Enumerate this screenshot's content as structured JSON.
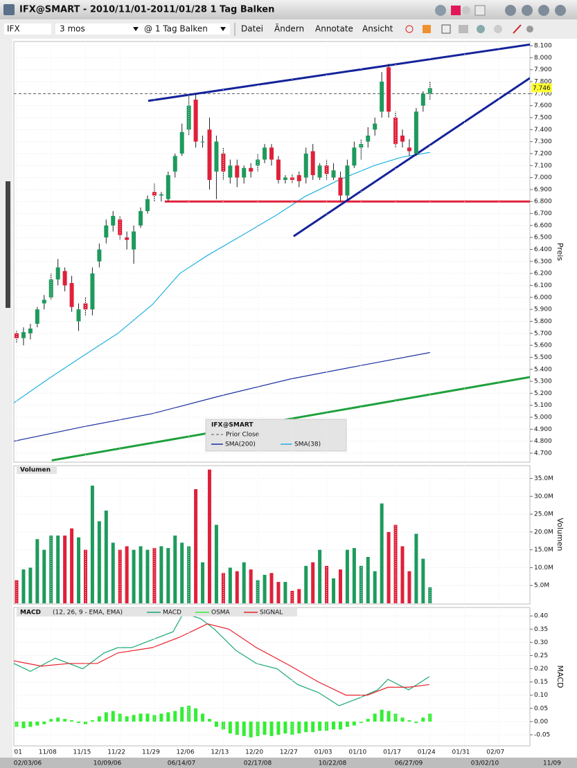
{
  "window_title": "IFX@SMART - 2010/11/01-2011/01/28 1 Tag Balken",
  "toolbar": {
    "symbol": "IFX",
    "period": "3 mos",
    "bar_size": "@ 1 Tag Balken",
    "menus": [
      "Datei",
      "Ändern",
      "Annotate",
      "Ansicht"
    ]
  },
  "navigator_labels": [
    "02/03/06",
    "10/09/06",
    "06/14/07",
    "02/17/08",
    "10/22/08",
    "06/27/09",
    "03/02/10",
    "11/09"
  ],
  "chart_data": [
    {
      "type": "candlestick",
      "y_label": "Preis",
      "legend_title": "IFX@SMART",
      "up_color": "#1e9a5c",
      "down_color": "#e0203a",
      "grid": true,
      "xlim": [
        -0.4,
        74.5
      ],
      "ylim": [
        4.625,
        8.135
      ],
      "yticks": [
        {
          "value": 4.7,
          "label": "4.700"
        },
        {
          "value": 4.8,
          "label": "4.800"
        },
        {
          "value": 4.9,
          "label": "4.900"
        },
        {
          "value": 5.0,
          "label": "5.000"
        },
        {
          "value": 5.1,
          "label": "5.100"
        },
        {
          "value": 5.2,
          "label": "5.200"
        },
        {
          "value": 5.3,
          "label": "5.300"
        },
        {
          "value": 5.4,
          "label": "5.400"
        },
        {
          "value": 5.5,
          "label": "5.500"
        },
        {
          "value": 5.6,
          "label": "5.600"
        },
        {
          "value": 5.7,
          "label": "5.700"
        },
        {
          "value": 5.8,
          "label": "5.800"
        },
        {
          "value": 5.9,
          "label": "5.900"
        },
        {
          "value": 6.0,
          "label": "6.000"
        },
        {
          "value": 6.1,
          "label": "6.100"
        },
        {
          "value": 6.2,
          "label": "6.200"
        },
        {
          "value": 6.3,
          "label": "6.300"
        },
        {
          "value": 6.4,
          "label": "6.400"
        },
        {
          "value": 6.5,
          "label": "6.500"
        },
        {
          "value": 6.6,
          "label": "6.600"
        },
        {
          "value": 6.7,
          "label": "6.700"
        },
        {
          "value": 6.8,
          "label": "6.800"
        },
        {
          "value": 6.9,
          "label": "6.900"
        },
        {
          "value": 7.0,
          "label": "7.000"
        },
        {
          "value": 7.1,
          "label": "7.100"
        },
        {
          "value": 7.2,
          "label": "7.200"
        },
        {
          "value": 7.3,
          "label": "7.300"
        },
        {
          "value": 7.4,
          "label": "7.400"
        },
        {
          "value": 7.5,
          "label": "7.500"
        },
        {
          "value": 7.6,
          "label": "7.600"
        },
        {
          "value": 7.7,
          "label": "7.700"
        },
        {
          "value": 7.8,
          "label": "7.800"
        },
        {
          "value": 7.9,
          "label": "7.900"
        },
        {
          "value": 8.0,
          "label": "8.000"
        },
        {
          "value": 8.1,
          "label": "8.100"
        }
      ],
      "open": [
        5.7,
        5.66,
        5.7,
        5.78,
        5.95,
        6.0,
        6.15,
        6.22,
        6.12,
        5.8,
        5.95,
        5.9,
        6.3,
        6.5,
        6.6,
        6.65,
        6.5,
        6.4,
        6.6,
        6.72,
        6.88,
        6.85,
        6.82,
        7.05,
        7.2,
        7.4,
        7.65,
        7.3,
        7.4,
        7.05,
        7.2,
        7.0,
        7.1,
        7.0,
        7.08,
        7.1,
        7.15,
        7.25,
        7.15,
        6.98,
        7.0,
        7.02,
        7.0,
        7.22,
        7.0,
        7.1,
        7.0,
        7.0,
        6.85,
        7.1,
        7.25,
        7.3,
        7.4,
        7.55,
        7.92,
        7.5,
        7.35,
        7.25,
        7.2,
        7.6,
        7.7
      ],
      "high": [
        5.72,
        5.75,
        5.78,
        5.92,
        6.02,
        6.2,
        6.32,
        6.25,
        6.18,
        5.95,
        6.0,
        6.25,
        6.45,
        6.65,
        6.72,
        6.68,
        6.55,
        6.6,
        6.75,
        6.85,
        6.95,
        6.88,
        7.05,
        7.2,
        7.45,
        7.7,
        7.7,
        7.35,
        7.5,
        7.35,
        7.25,
        7.15,
        7.15,
        7.1,
        7.12,
        7.2,
        7.28,
        7.28,
        7.18,
        7.02,
        7.03,
        7.05,
        7.25,
        7.28,
        7.12,
        7.15,
        7.12,
        7.05,
        7.15,
        7.3,
        7.32,
        7.42,
        7.5,
        7.88,
        7.95,
        7.55,
        7.4,
        7.32,
        7.58,
        7.72,
        7.8
      ],
      "low": [
        5.62,
        5.6,
        5.65,
        5.75,
        5.9,
        5.98,
        6.1,
        6.05,
        5.88,
        5.72,
        5.85,
        5.85,
        6.25,
        6.45,
        6.55,
        6.48,
        6.4,
        6.28,
        6.58,
        6.7,
        6.8,
        6.8,
        6.8,
        7.0,
        7.18,
        7.35,
        7.25,
        7.25,
        6.9,
        6.82,
        6.98,
        6.95,
        6.92,
        6.95,
        7.0,
        7.05,
        7.12,
        7.1,
        6.95,
        6.95,
        6.95,
        6.92,
        6.95,
        6.98,
        6.98,
        6.98,
        6.98,
        6.8,
        6.82,
        7.08,
        7.15,
        7.25,
        7.35,
        7.5,
        7.5,
        7.25,
        7.25,
        7.18,
        7.18,
        7.55,
        7.65
      ],
      "close": [
        5.66,
        5.71,
        5.74,
        5.9,
        5.98,
        6.15,
        6.25,
        6.1,
        5.92,
        5.9,
        5.9,
        6.2,
        6.4,
        6.6,
        6.68,
        6.52,
        6.48,
        6.55,
        6.72,
        6.82,
        6.85,
        6.86,
        7.02,
        7.18,
        7.38,
        7.6,
        7.3,
        7.3,
        6.98,
        7.3,
        7.05,
        7.1,
        7.0,
        7.08,
        7.05,
        7.15,
        7.25,
        7.15,
        6.98,
        7.0,
        6.98,
        6.97,
        7.2,
        7.02,
        7.1,
        7.03,
        7.06,
        6.85,
        7.1,
        7.25,
        7.28,
        7.35,
        7.45,
        7.8,
        7.55,
        7.28,
        7.3,
        7.22,
        7.55,
        7.7,
        7.746
      ],
      "prior_close": {
        "name": "Prior Close",
        "value": 7.7,
        "color": "#555555"
      },
      "series": [
        {
          "name": "SMA(200)",
          "color": "#1a2f9e",
          "x": [
            -0.4,
            9.6,
            19.7,
            29.7,
            39.8,
            49.8,
            60
          ],
          "values": [
            4.8,
            4.92,
            5.03,
            5.18,
            5.32,
            5.43,
            5.54
          ]
        },
        {
          "name": "SMA(38)",
          "color": "#1fb0e0",
          "x": [
            -0.4,
            4.6,
            9.6,
            14.7,
            19.7,
            23.7,
            27.7,
            32.8,
            37.8,
            41.8,
            46.8,
            51.9,
            55.9,
            60
          ],
          "values": [
            5.12,
            5.32,
            5.51,
            5.7,
            5.94,
            6.2,
            6.35,
            6.52,
            6.69,
            6.84,
            6.98,
            7.1,
            7.17,
            7.21
          ]
        }
      ],
      "trendlines": [
        {
          "color": "#e0203a",
          "x": [
            21.5,
            74.5
          ],
          "values": [
            6.8,
            6.8
          ]
        },
        {
          "color": "#14239a",
          "x": [
            19.1,
            74.5
          ],
          "values": [
            7.64,
            8.11
          ]
        },
        {
          "color": "#14239a",
          "x": [
            40.2,
            74.5
          ],
          "values": [
            6.51,
            7.83
          ]
        },
        {
          "color": "#1ea03c",
          "x": [
            5.1,
            74.5
          ],
          "values": [
            4.64,
            5.335
          ]
        }
      ]
    },
    {
      "type": "bar",
      "title": "Volumen",
      "y_label": "Volumen",
      "grid": true,
      "xlim": [
        -0.4,
        74.5
      ],
      "ylim": [
        0,
        38.6
      ],
      "yticks": [
        {
          "value": 5,
          "label": "5.0M"
        },
        {
          "value": 10,
          "label": "10.0M"
        },
        {
          "value": 15,
          "label": "15.0M"
        },
        {
          "value": 20,
          "label": "20.0M"
        },
        {
          "value": 25,
          "label": "25.0M"
        },
        {
          "value": 30,
          "label": "30.0M"
        },
        {
          "value": 35,
          "label": "35.0M"
        }
      ],
      "values": [
        6.5,
        9.5,
        10,
        18,
        15,
        19,
        19,
        19,
        21,
        18.5,
        15,
        33,
        23,
        26,
        17,
        15,
        16,
        15,
        16,
        15,
        15.5,
        16,
        15.5,
        19,
        17,
        16,
        32,
        11.5,
        37.5,
        22,
        8.5,
        10,
        9,
        11.5,
        9.5,
        6.5,
        8,
        8.5,
        6,
        6,
        3.5,
        4,
        10.5,
        11.5,
        15,
        10.5,
        7,
        9.5,
        15,
        15.5,
        10.5,
        13,
        9,
        28,
        20,
        22,
        16,
        9,
        19.5,
        12.5,
        4.5
      ]
    },
    {
      "type": "line",
      "title": "MACD",
      "subtitle": "(12, 26, 9 - EMA, EMA)",
      "y_label": "MACD",
      "grid": true,
      "xlim": [
        -0.4,
        74.5
      ],
      "ylim": [
        -0.092,
        0.432
      ],
      "xticks": [
        {
          "value": 0,
          "label": "11/01"
        },
        {
          "value": 5,
          "label": "11/08"
        },
        {
          "value": 10,
          "label": "11/15"
        },
        {
          "value": 15,
          "label": "11/22"
        },
        {
          "value": 20,
          "label": "11/29"
        },
        {
          "value": 25,
          "label": "12/06"
        },
        {
          "value": 30,
          "label": "12/13"
        },
        {
          "value": 35,
          "label": "12/20"
        },
        {
          "value": 40,
          "label": "12/27"
        },
        {
          "value": 45,
          "label": "01/03"
        },
        {
          "value": 50,
          "label": "01/10"
        },
        {
          "value": 55,
          "label": "01/17"
        },
        {
          "value": 60,
          "label": "01/24"
        },
        {
          "value": 65,
          "label": "01/31"
        },
        {
          "value": 70,
          "label": "02/07"
        }
      ],
      "yticks": [
        {
          "value": -0.05,
          "label": "-0.05"
        },
        {
          "value": 0,
          "label": "0.00"
        },
        {
          "value": 0.05,
          "label": "0.05"
        },
        {
          "value": 0.1,
          "label": "0.10"
        },
        {
          "value": 0.15,
          "label": "0.15"
        },
        {
          "value": 0.2,
          "label": "0.20"
        },
        {
          "value": 0.25,
          "label": "0.25"
        },
        {
          "value": 0.3,
          "label": "0.30"
        },
        {
          "value": 0.35,
          "label": "0.35"
        },
        {
          "value": 0.4,
          "label": "0.40"
        }
      ],
      "series": [
        {
          "name": "MACD",
          "color": "#17a872",
          "x": [
            -0.4,
            2,
            5.6,
            9.6,
            12.7,
            14.7,
            16.7,
            19.7,
            22.7,
            24.2,
            26.7,
            28.7,
            31.8,
            34.8,
            37.8,
            40.8,
            43.8,
            46.8,
            49.8,
            52.4,
            53.9,
            56.9,
            59.9
          ],
          "values": [
            0.22,
            0.19,
            0.24,
            0.2,
            0.26,
            0.28,
            0.28,
            0.31,
            0.34,
            0.41,
            0.39,
            0.35,
            0.27,
            0.22,
            0.2,
            0.14,
            0.11,
            0.06,
            0.09,
            0.12,
            0.16,
            0.12,
            0.17
          ]
        },
        {
          "name": "OSMA",
          "color": "#33ee33",
          "kind": "bar",
          "values": [
            -0.02,
            -0.025,
            -0.02,
            -0.015,
            -0.01,
            0.01,
            0.015,
            0.01,
            0.005,
            -0.005,
            -0.01,
            0.005,
            0.02,
            0.035,
            0.04,
            0.03,
            0.02,
            0.025,
            0.03,
            0.03,
            0.025,
            0.03,
            0.035,
            0.04,
            0.055,
            0.06,
            0.05,
            0.03,
            0.01,
            -0.02,
            -0.03,
            -0.045,
            -0.05,
            -0.055,
            -0.06,
            -0.055,
            -0.05,
            -0.055,
            -0.05,
            -0.045,
            -0.05,
            -0.045,
            -0.04,
            -0.04,
            -0.035,
            -0.035,
            -0.03,
            -0.03,
            -0.02,
            -0.015,
            -0.005,
            0.01,
            0.03,
            0.045,
            0.04,
            0.03,
            0.015,
            0.005,
            -0.005,
            0.015,
            0.03
          ]
        },
        {
          "name": "SIGNAL",
          "color": "#e8202a",
          "x": [
            -0.4,
            3.6,
            7.6,
            11.7,
            14.7,
            19.7,
            23.7,
            27.7,
            30.8,
            34.8,
            39.8,
            43.8,
            47.8,
            50.9,
            53.9,
            56.9,
            59.9
          ],
          "values": [
            0.23,
            0.21,
            0.22,
            0.22,
            0.26,
            0.28,
            0.32,
            0.37,
            0.35,
            0.28,
            0.21,
            0.15,
            0.1,
            0.1,
            0.13,
            0.13,
            0.14
          ]
        }
      ]
    }
  ]
}
